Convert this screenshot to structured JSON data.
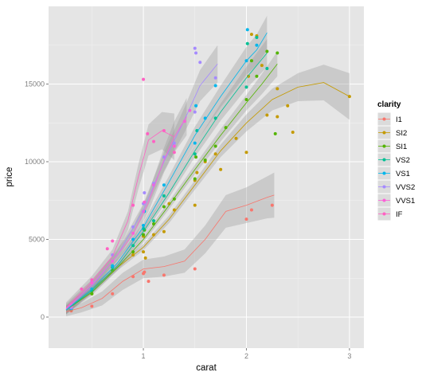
{
  "chart_data": {
    "type": "scatter",
    "xlabel": "carat",
    "ylabel": "price",
    "xlim": [
      0.08,
      3.14
    ],
    "ylim": [
      -2000,
      20000
    ],
    "x_ticks": [
      1,
      2,
      3
    ],
    "x_tick_labels": [
      "1",
      "2",
      "3"
    ],
    "y_ticks": [
      0,
      5000,
      10000,
      15000
    ],
    "y_tick_labels": [
      "0",
      "5000",
      "10000",
      "15000"
    ],
    "grid": true,
    "smooth": true,
    "legend": {
      "title": "clarity",
      "position": "right"
    },
    "series": [
      {
        "name": "I1",
        "color": "#F8766D",
        "smooth": [
          [
            0.25,
            350
          ],
          [
            0.4,
            600
          ],
          [
            0.6,
            1200
          ],
          [
            0.8,
            2300
          ],
          [
            1.0,
            3100
          ],
          [
            1.2,
            3250
          ],
          [
            1.4,
            3600
          ],
          [
            1.6,
            5000
          ],
          [
            1.8,
            6800
          ],
          [
            2.0,
            7200
          ],
          [
            2.2,
            7700
          ],
          [
            2.27,
            7850
          ]
        ],
        "band": [
          300,
          300,
          450,
          550,
          600,
          650,
          750,
          900,
          1050,
          1150,
          1350,
          1450
        ],
        "points": [
          [
            0.3,
            400
          ],
          [
            0.5,
            700
          ],
          [
            0.7,
            1500
          ],
          [
            0.9,
            2600
          ],
          [
            1.0,
            2800
          ],
          [
            1.01,
            2900
          ],
          [
            1.05,
            2300
          ],
          [
            1.2,
            2700
          ],
          [
            1.5,
            3100
          ],
          [
            2.0,
            6300
          ],
          [
            2.05,
            6900
          ],
          [
            2.25,
            7200
          ]
        ]
      },
      {
        "name": "SI2",
        "color": "#C49A00",
        "smooth": [
          [
            0.25,
            450
          ],
          [
            0.5,
            1800
          ],
          [
            0.75,
            3200
          ],
          [
            1.0,
            4500
          ],
          [
            1.25,
            6300
          ],
          [
            1.5,
            8500
          ],
          [
            1.75,
            10700
          ],
          [
            2.0,
            12500
          ],
          [
            2.25,
            14000
          ],
          [
            2.5,
            14800
          ],
          [
            2.75,
            15100
          ],
          [
            3.0,
            14200
          ]
        ],
        "band": [
          300,
          250,
          200,
          200,
          250,
          300,
          400,
          550,
          700,
          900,
          1150,
          1500
        ],
        "points": [
          [
            0.3,
            500
          ],
          [
            0.5,
            1500
          ],
          [
            0.7,
            3000
          ],
          [
            0.9,
            4000
          ],
          [
            1.0,
            4200
          ],
          [
            1.0,
            5200
          ],
          [
            1.02,
            3800
          ],
          [
            1.1,
            5300
          ],
          [
            1.2,
            5500
          ],
          [
            1.25,
            7300
          ],
          [
            1.3,
            6900
          ],
          [
            1.5,
            7200
          ],
          [
            1.5,
            8800
          ],
          [
            1.52,
            9300
          ],
          [
            1.6,
            10000
          ],
          [
            1.7,
            10500
          ],
          [
            1.75,
            9500
          ],
          [
            1.9,
            11500
          ],
          [
            2.0,
            10600
          ],
          [
            2.02,
            15500
          ],
          [
            2.05,
            18200
          ],
          [
            2.1,
            18100
          ],
          [
            2.15,
            16200
          ],
          [
            2.2,
            13000
          ],
          [
            2.3,
            14700
          ],
          [
            2.3,
            12900
          ],
          [
            2.4,
            13600
          ],
          [
            2.45,
            11900
          ],
          [
            3.0,
            14200
          ]
        ]
      },
      {
        "name": "SI1",
        "color": "#53B400",
        "smooth": [
          [
            0.25,
            450
          ],
          [
            0.5,
            1600
          ],
          [
            0.75,
            3200
          ],
          [
            1.0,
            5000
          ],
          [
            1.25,
            7200
          ],
          [
            1.5,
            9500
          ],
          [
            1.75,
            11700
          ],
          [
            2.0,
            13800
          ],
          [
            2.15,
            15000
          ],
          [
            2.3,
            16300
          ]
        ],
        "band": [
          250,
          200,
          200,
          200,
          250,
          300,
          400,
          500,
          650,
          800
        ],
        "points": [
          [
            0.3,
            500
          ],
          [
            0.5,
            1500
          ],
          [
            0.7,
            3000
          ],
          [
            0.9,
            4200
          ],
          [
            1.0,
            5300
          ],
          [
            1.01,
            5600
          ],
          [
            1.1,
            6000
          ],
          [
            1.2,
            7100
          ],
          [
            1.3,
            7600
          ],
          [
            1.5,
            8900
          ],
          [
            1.51,
            10300
          ],
          [
            1.6,
            10100
          ],
          [
            1.7,
            11000
          ],
          [
            1.8,
            12200
          ],
          [
            2.0,
            14000
          ],
          [
            2.05,
            16500
          ],
          [
            2.1,
            15500
          ],
          [
            2.2,
            17100
          ],
          [
            2.3,
            17000
          ],
          [
            2.28,
            11800
          ]
        ]
      },
      {
        "name": "VS2",
        "color": "#00C094",
        "smooth": [
          [
            0.25,
            450
          ],
          [
            0.5,
            1700
          ],
          [
            0.75,
            3300
          ],
          [
            1.0,
            5500
          ],
          [
            1.25,
            8000
          ],
          [
            1.5,
            10700
          ],
          [
            1.75,
            13200
          ],
          [
            2.0,
            15400
          ],
          [
            2.2,
            17000
          ]
        ],
        "band": [
          250,
          200,
          200,
          250,
          300,
          400,
          550,
          700,
          900
        ],
        "points": [
          [
            0.3,
            500
          ],
          [
            0.5,
            1700
          ],
          [
            0.7,
            3200
          ],
          [
            0.9,
            4600
          ],
          [
            1.0,
            5700
          ],
          [
            1.1,
            6200
          ],
          [
            1.2,
            7800
          ],
          [
            1.5,
            10500
          ],
          [
            1.52,
            12000
          ],
          [
            1.7,
            12800
          ],
          [
            2.0,
            14800
          ],
          [
            2.01,
            17600
          ],
          [
            2.1,
            18000
          ],
          [
            2.2,
            16000
          ]
        ]
      },
      {
        "name": "VS1",
        "color": "#00B6EB",
        "smooth": [
          [
            0.25,
            450
          ],
          [
            0.5,
            1800
          ],
          [
            0.75,
            3500
          ],
          [
            1.0,
            5800
          ],
          [
            1.25,
            8700
          ],
          [
            1.5,
            11700
          ],
          [
            1.75,
            14200
          ],
          [
            2.0,
            16500
          ],
          [
            2.1,
            17200
          ],
          [
            2.2,
            18300
          ]
        ],
        "band": [
          250,
          250,
          250,
          300,
          400,
          550,
          700,
          900,
          1000,
          1100
        ],
        "points": [
          [
            0.3,
            550
          ],
          [
            0.5,
            1800
          ],
          [
            0.7,
            3300
          ],
          [
            0.9,
            5000
          ],
          [
            1.0,
            5900
          ],
          [
            1.01,
            6800
          ],
          [
            1.2,
            8500
          ],
          [
            1.5,
            11200
          ],
          [
            1.51,
            13600
          ],
          [
            1.6,
            12800
          ],
          [
            1.7,
            14900
          ],
          [
            2.0,
            16500
          ],
          [
            2.01,
            18500
          ],
          [
            2.1,
            17500
          ]
        ]
      },
      {
        "name": "VVS2",
        "color": "#A58AFF",
        "smooth": [
          [
            0.25,
            500
          ],
          [
            0.5,
            2000
          ],
          [
            0.75,
            4000
          ],
          [
            1.0,
            6900
          ],
          [
            1.2,
            10000
          ],
          [
            1.4,
            12700
          ],
          [
            1.55,
            14900
          ],
          [
            1.72,
            16300
          ]
        ],
        "band": [
          250,
          250,
          300,
          400,
          600,
          800,
          1000,
          1200
        ],
        "points": [
          [
            0.3,
            600
          ],
          [
            0.5,
            2300
          ],
          [
            0.7,
            4000
          ],
          [
            0.9,
            5800
          ],
          [
            1.0,
            7300
          ],
          [
            1.01,
            8000
          ],
          [
            1.1,
            8600
          ],
          [
            1.2,
            10300
          ],
          [
            1.3,
            11200
          ],
          [
            1.5,
            13200
          ],
          [
            1.5,
            17300
          ],
          [
            1.51,
            17000
          ],
          [
            1.55,
            16400
          ],
          [
            1.7,
            15400
          ]
        ]
      },
      {
        "name": "VVS1",
        "color": "#FB61D7",
        "smooth": [
          [
            0.25,
            550
          ],
          [
            0.5,
            2100
          ],
          [
            0.7,
            3600
          ],
          [
            0.9,
            5300
          ],
          [
            1.05,
            7400
          ],
          [
            1.2,
            10100
          ],
          [
            1.3,
            11600
          ],
          [
            1.42,
            12900
          ]
        ],
        "band": [
          300,
          300,
          350,
          450,
          600,
          800,
          1000,
          1200
        ],
        "points": [
          [
            0.3,
            700
          ],
          [
            0.5,
            2200
          ],
          [
            0.7,
            3600
          ],
          [
            0.9,
            5400
          ],
          [
            1.0,
            6800
          ],
          [
            1.01,
            7400
          ],
          [
            1.1,
            8500
          ],
          [
            1.3,
            11000
          ],
          [
            1.4,
            12600
          ],
          [
            1.45,
            13300
          ]
        ]
      },
      {
        "name": "IF",
        "color": "#FF61C3",
        "smooth": [
          [
            0.25,
            600
          ],
          [
            0.5,
            2300
          ],
          [
            0.7,
            3900
          ],
          [
            0.85,
            6200
          ],
          [
            0.95,
            9000
          ],
          [
            1.05,
            11400
          ],
          [
            1.18,
            12000
          ],
          [
            1.3,
            11600
          ]
        ],
        "band": [
          350,
          350,
          450,
          600,
          800,
          1000,
          1200,
          1500
        ],
        "points": [
          [
            0.3,
            800
          ],
          [
            0.4,
            1800
          ],
          [
            0.5,
            2400
          ],
          [
            0.65,
            4400
          ],
          [
            0.7,
            4900
          ],
          [
            0.9,
            7200
          ],
          [
            1.0,
            15300
          ],
          [
            1.04,
            11800
          ],
          [
            1.1,
            11300
          ],
          [
            1.2,
            12000
          ],
          [
            1.3,
            10600
          ]
        ]
      }
    ]
  }
}
